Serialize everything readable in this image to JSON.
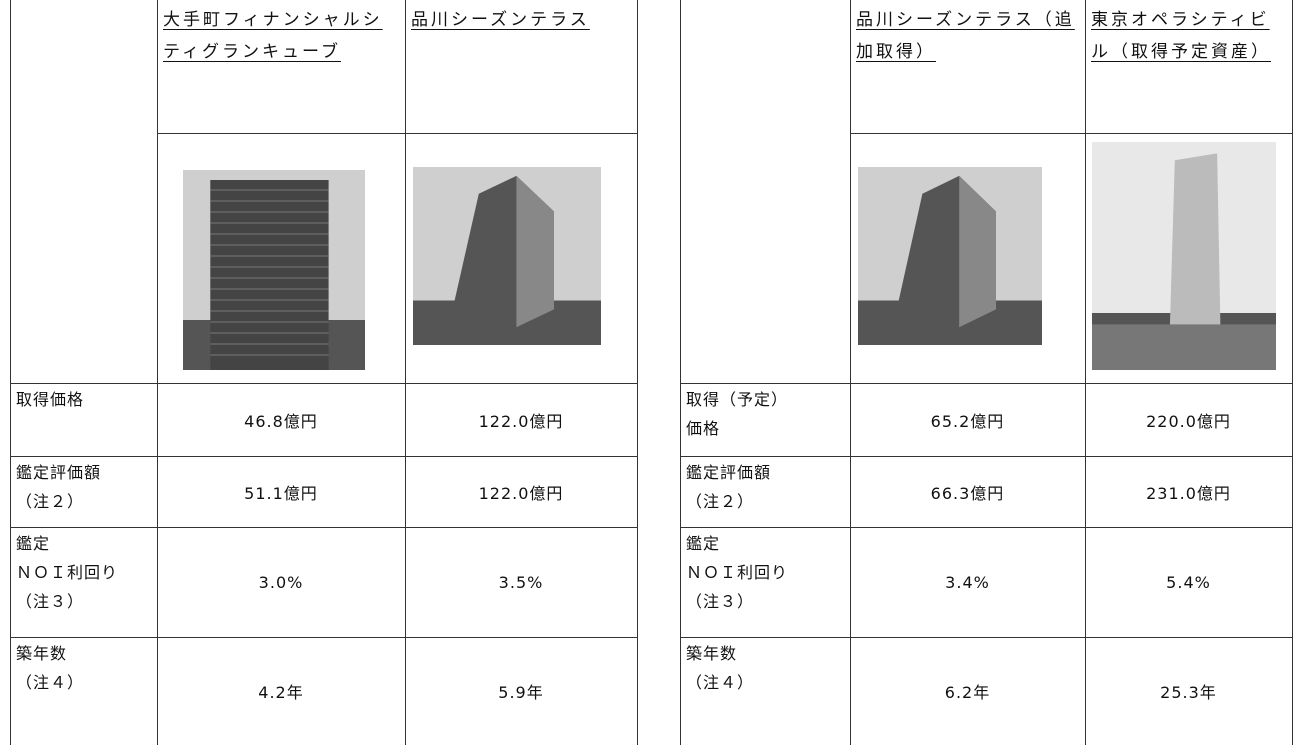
{
  "left_table": {
    "headers": [
      "大手町フィナンシャルシティグランキューブ",
      "品川シーズンテラス"
    ],
    "rows": [
      {
        "label": [
          "取得価格"
        ],
        "values": [
          "46.8億円",
          "122.0億円"
        ]
      },
      {
        "label": [
          "鑑定評価額",
          "（注２）"
        ],
        "values": [
          "51.1億円",
          "122.0億円"
        ]
      },
      {
        "label": [
          "鑑定",
          "ＮＯＩ利回り",
          "（注３）"
        ],
        "values": [
          "3.0%",
          "3.5%"
        ]
      },
      {
        "label": [
          "築年数",
          "（注４）"
        ],
        "values": [
          "4.2年",
          "5.9年"
        ]
      }
    ]
  },
  "right_table": {
    "headers": [
      "品川シーズンテラス（追加取得）",
      "東京オペラシティビル（取得予定資産）"
    ],
    "rows": [
      {
        "label": [
          "取得（予定）",
          "価格"
        ],
        "values": [
          "65.2億円",
          "220.0億円"
        ]
      },
      {
        "label": [
          "鑑定評価額",
          "（注２）"
        ],
        "values": [
          "66.3億円",
          "231.0億円"
        ]
      },
      {
        "label": [
          "鑑定",
          "ＮＯＩ利回り",
          "（注３）"
        ],
        "values": [
          "3.4%",
          "5.4%"
        ]
      },
      {
        "label": [
          "築年数",
          "（注４）"
        ],
        "values": [
          "6.2年",
          "25.3年"
        ]
      }
    ]
  }
}
